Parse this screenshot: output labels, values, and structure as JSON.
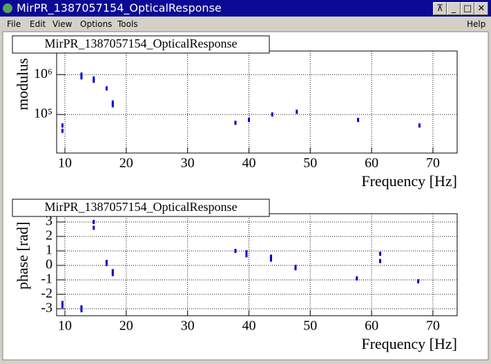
{
  "window": {
    "title": "MirPR_1387057154_OpticalResponse",
    "menu": [
      "File",
      "Edit",
      "View",
      "Options",
      "Tools"
    ],
    "help": "Help"
  },
  "chart_data": [
    {
      "type": "scatter",
      "title": "MirPR_1387057154_OpticalResponse",
      "x_label": "Frequency [Hz]",
      "y_label": "modulus",
      "color": "#0000cc",
      "ylog": true,
      "grid": true,
      "x": [
        9.6,
        9.6,
        12.7,
        12.7,
        14.7,
        14.7,
        16.8,
        17.8,
        17.8,
        37.8,
        40.0,
        43.8,
        47.8,
        57.8,
        67.8
      ],
      "values": [
        53000,
        39000,
        1000000,
        850000,
        800000,
        700000,
        450000,
        200000,
        170000,
        62000,
        73000,
        100000,
        117000,
        73000,
        53000
      ],
      "xlim": [
        8.65,
        73.95
      ],
      "xticks": [
        10,
        20,
        30,
        40,
        50,
        60,
        70
      ],
      "ylim": [
        10800,
        3900000
      ],
      "yticks": [
        {
          "value": 100000,
          "label": "10⁵"
        },
        {
          "value": 1000000,
          "label": "10⁶"
        }
      ]
    },
    {
      "type": "scatter",
      "title": "MirPR_1387057154_OpticalResponse",
      "x_label": "Frequency [Hz]",
      "y_label": "phase [rad]",
      "color": "#0000cc",
      "ylog": false,
      "grid": true,
      "x": [
        9.6,
        9.6,
        12.7,
        12.7,
        14.7,
        14.7,
        16.8,
        16.8,
        17.8,
        17.8,
        37.8,
        39.6,
        39.6,
        43.6,
        43.6,
        47.6,
        47.6,
        57.6,
        61.4,
        61.4,
        67.6
      ],
      "values": [
        -2.6,
        -2.8,
        -2.9,
        -3.1,
        3.0,
        2.6,
        0.24,
        0.1,
        -0.4,
        -0.6,
        1.0,
        0.9,
        0.7,
        0.6,
        0.4,
        -0.1,
        -0.2,
        -0.9,
        0.8,
        0.3,
        -1.1
      ],
      "xlim": [
        8.65,
        73.95
      ],
      "xticks": [
        10,
        20,
        30,
        40,
        50,
        60,
        70
      ],
      "ylim": [
        -3.48,
        3.57
      ],
      "yticks": [
        -3,
        -2,
        -1,
        0,
        1,
        2,
        3
      ]
    }
  ]
}
